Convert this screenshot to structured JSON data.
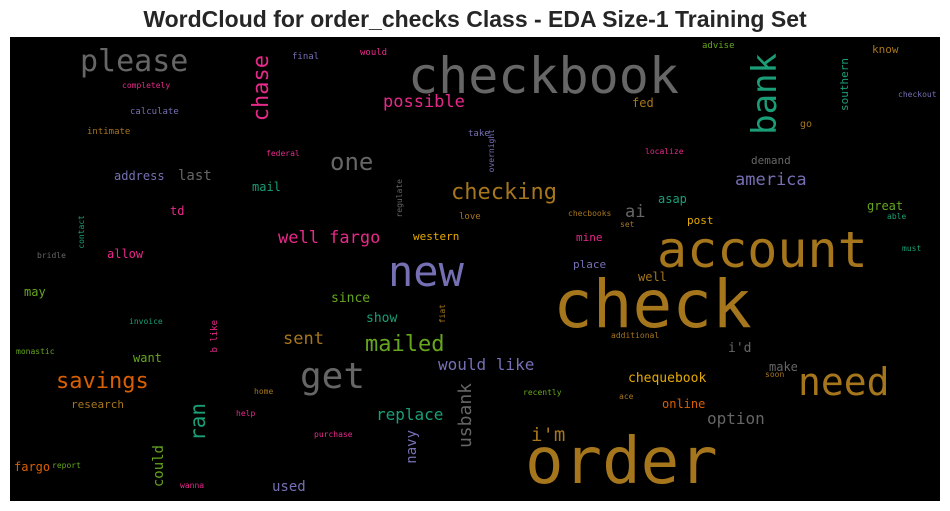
{
  "chart_data": {
    "type": "wordcloud",
    "title": "WordCloud for order_checks Class - EDA Size-1 Training Set",
    "background": "#000000",
    "palette": [
      "#1b9e77",
      "#d95f02",
      "#7570b3",
      "#e7298a",
      "#66a61e",
      "#e6ab02",
      "#a6761d",
      "#666666"
    ],
    "words": [
      {
        "text": "order",
        "color": "#a6761d"
      },
      {
        "text": "check",
        "color": "#a6761d"
      },
      {
        "text": "account",
        "color": "#a6761d"
      },
      {
        "text": "checkbook",
        "color": "#666666"
      },
      {
        "text": "new",
        "color": "#7570b3"
      },
      {
        "text": "need",
        "color": "#a6761d"
      },
      {
        "text": "get",
        "color": "#666666"
      },
      {
        "text": "please",
        "color": "#666666"
      },
      {
        "text": "bank",
        "color": "#1b9e77"
      },
      {
        "text": "chase",
        "color": "#e7298a"
      },
      {
        "text": "checking",
        "color": "#a6761d"
      },
      {
        "text": "savings",
        "color": "#d95f02"
      },
      {
        "text": "mailed",
        "color": "#66a61e"
      },
      {
        "text": "one",
        "color": "#666666"
      },
      {
        "text": "possible",
        "color": "#e7298a"
      },
      {
        "text": "america",
        "color": "#7570b3"
      },
      {
        "text": "well fargo",
        "color": "#e7298a"
      },
      {
        "text": "ran",
        "color": "#1b9e77"
      },
      {
        "text": "i'm",
        "color": "#a6761d"
      },
      {
        "text": "usbank",
        "color": "#666666"
      },
      {
        "text": "sent",
        "color": "#a6761d"
      },
      {
        "text": "replace",
        "color": "#1b9e77"
      },
      {
        "text": "would like",
        "color": "#7570b3"
      },
      {
        "text": "option",
        "color": "#666666"
      },
      {
        "text": "ai",
        "color": "#666666"
      },
      {
        "text": "used",
        "color": "#7570b3"
      },
      {
        "text": "could",
        "color": "#66a61e"
      },
      {
        "text": "navy",
        "color": "#7570b3"
      },
      {
        "text": "chequebook",
        "color": "#e6ab02"
      },
      {
        "text": "last",
        "color": "#666666"
      },
      {
        "text": "since",
        "color": "#66a61e"
      },
      {
        "text": "show",
        "color": "#1b9e77"
      },
      {
        "text": "i'd",
        "color": "#666666"
      },
      {
        "text": "southern",
        "color": "#1b9e77"
      },
      {
        "text": "address",
        "color": "#7570b3"
      },
      {
        "text": "mail",
        "color": "#1b9e77"
      },
      {
        "text": "allow",
        "color": "#e7298a"
      },
      {
        "text": "td",
        "color": "#e7298a"
      },
      {
        "text": "fed",
        "color": "#a6761d"
      },
      {
        "text": "demand",
        "color": "#666666"
      },
      {
        "text": "asap",
        "color": "#1b9e77"
      },
      {
        "text": "western",
        "color": "#e6ab02"
      },
      {
        "text": "mine",
        "color": "#e7298a"
      },
      {
        "text": "place",
        "color": "#7570b3"
      },
      {
        "text": "well",
        "color": "#a6761d"
      },
      {
        "text": "great",
        "color": "#66a61e"
      },
      {
        "text": "know",
        "color": "#a6761d"
      },
      {
        "text": "may",
        "color": "#66a61e"
      },
      {
        "text": "want",
        "color": "#66a61e"
      },
      {
        "text": "research",
        "color": "#a6761d"
      },
      {
        "text": "fargo",
        "color": "#d95f02"
      },
      {
        "text": "online",
        "color": "#d95f02"
      },
      {
        "text": "make",
        "color": "#666666"
      },
      {
        "text": "post",
        "color": "#e6ab02"
      },
      {
        "text": "go",
        "color": "#a6761d"
      },
      {
        "text": "final",
        "color": "#7570b3"
      },
      {
        "text": "would",
        "color": "#e7298a"
      },
      {
        "text": "advise",
        "color": "#66a61e"
      },
      {
        "text": "completely",
        "color": "#e7298a"
      },
      {
        "text": "calculate",
        "color": "#7570b3"
      },
      {
        "text": "intimate",
        "color": "#a6761d"
      },
      {
        "text": "take",
        "color": "#7570b3"
      },
      {
        "text": "overnight",
        "color": "#7570b3"
      },
      {
        "text": "federal",
        "color": "#e7298a"
      },
      {
        "text": "localize",
        "color": "#e7298a"
      },
      {
        "text": "checkout",
        "color": "#7570b3"
      },
      {
        "text": "regulate",
        "color": "#666666"
      },
      {
        "text": "love",
        "color": "#a6761d"
      },
      {
        "text": "checbooks",
        "color": "#a6761d"
      },
      {
        "text": "set",
        "color": "#a6761d"
      },
      {
        "text": "able",
        "color": "#1b9e77"
      },
      {
        "text": "must",
        "color": "#1b9e77"
      },
      {
        "text": "contact",
        "color": "#1b9e77"
      },
      {
        "text": "bridle",
        "color": "#666666"
      },
      {
        "text": "invoice",
        "color": "#1b9e77"
      },
      {
        "text": "fiat",
        "color": "#a6761d"
      },
      {
        "text": "b like",
        "color": "#e7298a"
      },
      {
        "text": "monastic",
        "color": "#66a61e"
      },
      {
        "text": "additional",
        "color": "#a6761d"
      },
      {
        "text": "home",
        "color": "#a6761d"
      },
      {
        "text": "recently",
        "color": "#66a61e"
      },
      {
        "text": "soon",
        "color": "#a6761d"
      },
      {
        "text": "ace",
        "color": "#a6761d"
      },
      {
        "text": "help",
        "color": "#e7298a"
      },
      {
        "text": "purchase",
        "color": "#e7298a"
      },
      {
        "text": "report",
        "color": "#66a61e"
      },
      {
        "text": "wanna",
        "color": "#e7298a"
      }
    ]
  }
}
